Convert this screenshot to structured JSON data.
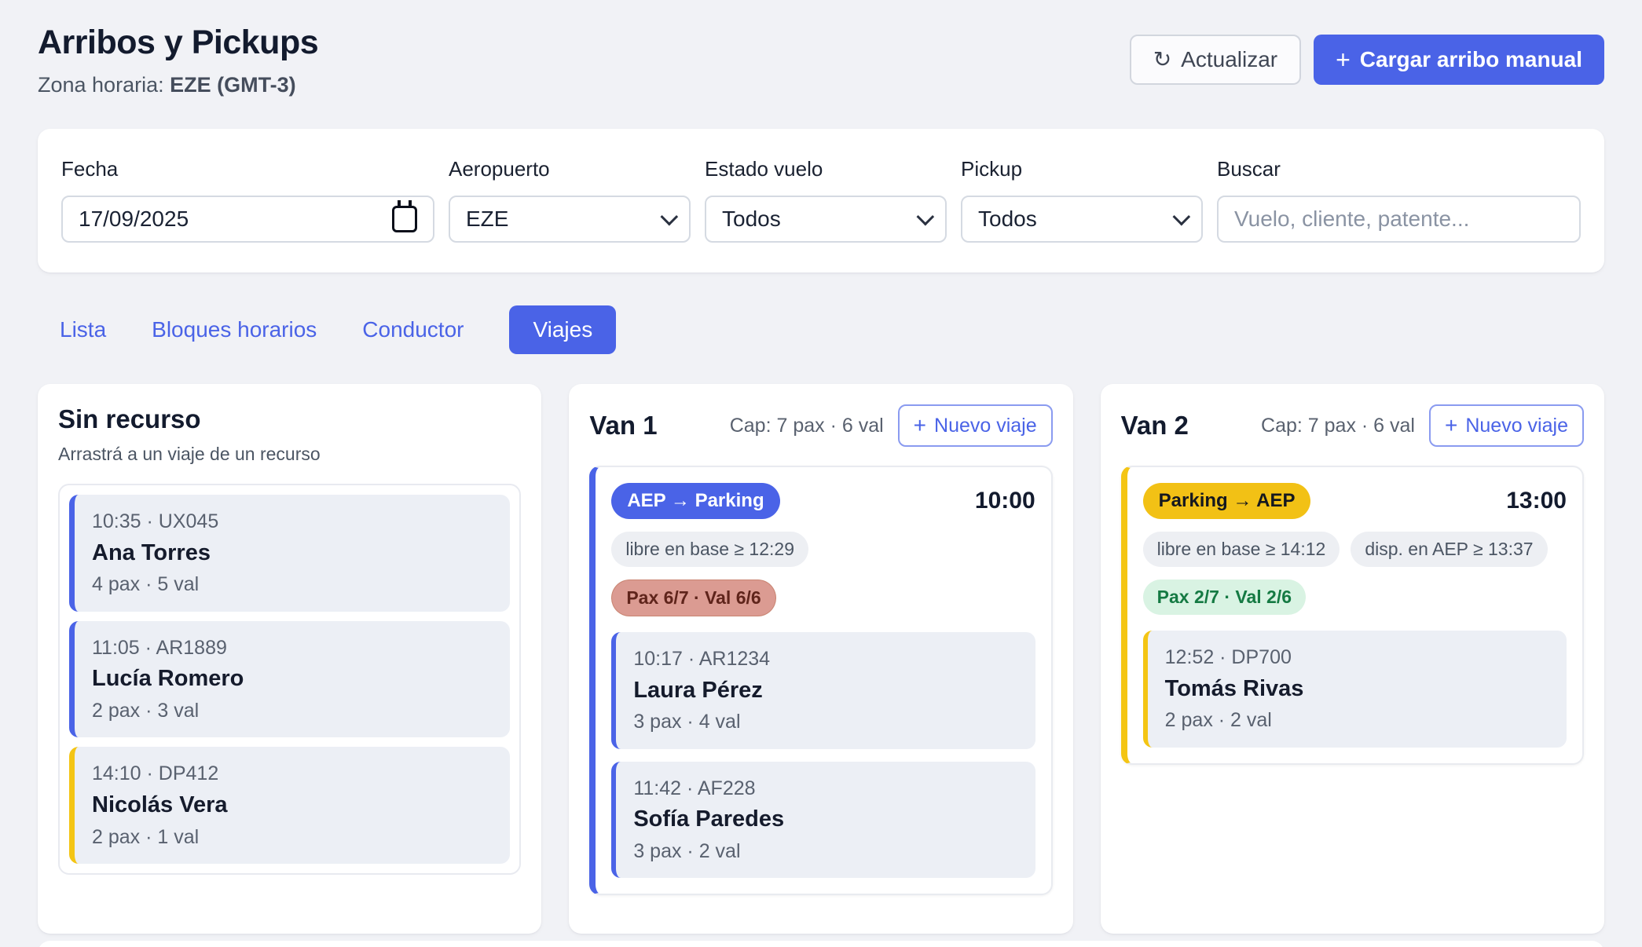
{
  "icons": {
    "plus": "+",
    "refresh": "↻"
  },
  "colors": {
    "primary_blue": "#4A63E7",
    "accent_yellow": "#F4C514",
    "route_gold": "#F2C115",
    "warn_pill_bg": "#DB9B92",
    "warn_pill_text": "#5F241B",
    "ok_pill_bg": "#D9F3E3",
    "ok_pill_text": "#157A43",
    "page_bg": "#F1F2F6"
  },
  "header": {
    "title": "Arribos y Pickups",
    "timezone_label": "Zona horaria: ",
    "timezone_value": "EZE (GMT-3)",
    "refresh_label": "Actualizar",
    "add_manual_label": "Cargar arribo manual"
  },
  "filters": {
    "fecha": {
      "label": "Fecha",
      "value": "17/09/2025"
    },
    "aeropuerto": {
      "label": "Aeropuerto",
      "value": "EZE"
    },
    "estado_vuelo": {
      "label": "Estado vuelo",
      "value": "Todos"
    },
    "pickup": {
      "label": "Pickup",
      "value": "Todos"
    },
    "buscar": {
      "label": "Buscar",
      "placeholder": "Vuelo, cliente, patente..."
    }
  },
  "tabs": [
    {
      "label": "Lista",
      "active": false
    },
    {
      "label": "Bloques horarios",
      "active": false
    },
    {
      "label": "Conductor",
      "active": false
    },
    {
      "label": "Viajes",
      "active": true
    }
  ],
  "board": {
    "unassigned": {
      "title": "Sin recurso",
      "subtitle": "Arrastrá a un viaje de un recurso",
      "cards": [
        {
          "meta": "10:35 · UX045",
          "name": "Ana Torres",
          "pax": "4 pax · 5 val",
          "accent": "blue"
        },
        {
          "meta": "11:05 · AR1889",
          "name": "Lucía Romero",
          "pax": "2 pax · 3 val",
          "accent": "blue"
        },
        {
          "meta": "14:10 · DP412",
          "name": "Nicolás Vera",
          "pax": "2 pax · 1 val",
          "accent": "yellow"
        }
      ]
    },
    "resources": [
      {
        "name": "Van 1",
        "capacity": "Cap: 7 pax · 6 val",
        "new_trip_label": "Nuevo viaje",
        "trips": [
          {
            "route": "AEP → Parking",
            "route_color": "blue",
            "time": "10:00",
            "constraints": [
              "libre en base ≥ 12:29"
            ],
            "load": {
              "text": "Pax 6/7 · Val 6/6",
              "tone": "warning"
            },
            "passengers": [
              {
                "meta": "10:17 · AR1234",
                "name": "Laura Pérez",
                "pax": "3 pax · 4 val"
              },
              {
                "meta": "11:42 · AF228",
                "name": "Sofía Paredes",
                "pax": "3 pax · 2 val"
              }
            ]
          }
        ]
      },
      {
        "name": "Van 2",
        "capacity": "Cap: 7 pax · 6 val",
        "new_trip_label": "Nuevo viaje",
        "trips": [
          {
            "route": "Parking → AEP",
            "route_color": "yellow",
            "time": "13:00",
            "constraints": [
              "libre en base ≥ 14:12",
              "disp. en AEP ≥ 13:37"
            ],
            "load": {
              "text": "Pax 2/7 · Val 2/6",
              "tone": "ok"
            },
            "passengers": [
              {
                "meta": "12:52 · DP700",
                "name": "Tomás Rivas",
                "pax": "2 pax · 2 val"
              }
            ]
          }
        ]
      }
    ]
  }
}
